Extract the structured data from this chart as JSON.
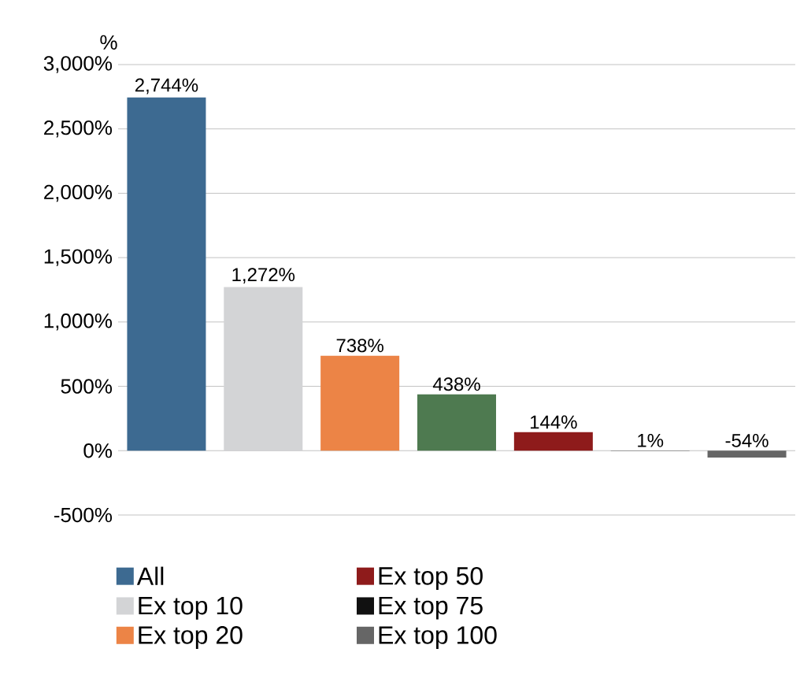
{
  "chart_data": {
    "type": "bar",
    "ylabel": "%",
    "categories": [
      null,
      null,
      null,
      null,
      null,
      null,
      null
    ],
    "series": [
      {
        "name": "All",
        "color": "#3d6a91",
        "values": [
          2744,
          null,
          null,
          null,
          null,
          null,
          null
        ],
        "value_labels": [
          "2,744%",
          null,
          null,
          null,
          null,
          null,
          null
        ]
      },
      {
        "name": "Ex top 10",
        "color": "#d3d4d6",
        "values": [
          null,
          1272,
          null,
          null,
          null,
          null,
          null
        ],
        "value_labels": [
          null,
          "1,272%",
          null,
          null,
          null,
          null,
          null
        ]
      },
      {
        "name": "Ex top 20",
        "color": "#ec8446",
        "values": [
          null,
          null,
          738,
          null,
          null,
          null,
          null
        ],
        "value_labels": [
          null,
          null,
          "738%",
          null,
          null,
          null,
          null
        ]
      },
      {
        "name": "Ex top 50",
        "color": "#8e1b1b",
        "values": [
          null,
          null,
          null,
          null,
          144,
          null,
          null
        ],
        "value_labels": [
          null,
          null,
          null,
          null,
          "144%",
          null,
          null
        ]
      },
      {
        "name": "Ex top 75",
        "color": "#111111",
        "values": [
          null,
          null,
          null,
          null,
          null,
          1,
          null
        ],
        "value_labels": [
          null,
          null,
          null,
          null,
          null,
          "1%",
          null
        ]
      },
      {
        "name": "Ex top 100",
        "color": "#666666",
        "values": [
          null,
          null,
          null,
          null,
          null,
          null,
          -54
        ],
        "value_labels": [
          null,
          null,
          null,
          null,
          null,
          null,
          "-54%"
        ]
      },
      {
        "color": "#4e7a50",
        "values": [
          null,
          null,
          null,
          438,
          null,
          null,
          null
        ],
        "value_labels": [
          null,
          null,
          null,
          "438%",
          null,
          null,
          null
        ]
      }
    ],
    "ylim": [
      -500,
      3000
    ],
    "yticks": [
      {
        "value": -500,
        "label": "-500%"
      },
      {
        "value": 0,
        "label": "0%"
      },
      {
        "value": 500,
        "label": "500%"
      },
      {
        "value": 1000,
        "label": "1,000%"
      },
      {
        "value": 1500,
        "label": "1,500%"
      },
      {
        "value": 2000,
        "label": "2,000%"
      },
      {
        "value": 2500,
        "label": "2,500%"
      },
      {
        "value": 3000,
        "label": "3,000%"
      }
    ],
    "grid": "y",
    "legend": "bottom"
  }
}
